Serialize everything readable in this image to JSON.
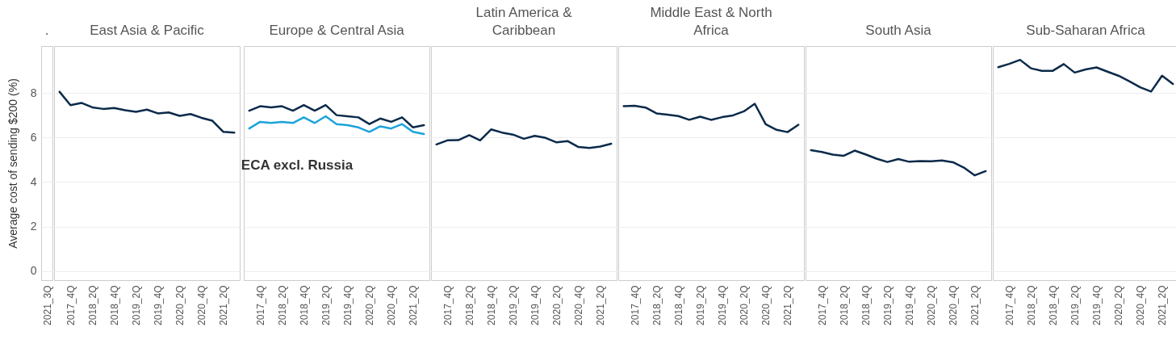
{
  "chart_data": [
    {
      "type": "line",
      "title": ".",
      "ylabel": "Average cost of sending $200 (%)",
      "categories": [
        "2021_3Q"
      ],
      "series": [
        {
          "color": "#0b2a4a",
          "values": [
            null
          ]
        }
      ],
      "ylim": [
        -0.4,
        10.1
      ],
      "yticks": [
        0,
        2,
        4,
        6,
        8
      ],
      "grid": "y",
      "marker": "none",
      "line_style": "solid"
    },
    {
      "type": "line",
      "title": "East Asia & Pacific",
      "categories": [
        null,
        "2017_4Q",
        null,
        "2018_2Q",
        null,
        "2018_4Q",
        null,
        "2019_2Q",
        null,
        "2019_4Q",
        null,
        "2020_2Q",
        null,
        "2020_4Q",
        null,
        "2021_2Q",
        null
      ],
      "series": [
        {
          "color": "#0b2a4a",
          "values": [
            8.05,
            7.45,
            7.55,
            7.35,
            7.28,
            7.32,
            7.22,
            7.15,
            7.25,
            7.08,
            7.12,
            6.97,
            7.05,
            6.88,
            6.75,
            6.25,
            6.22
          ]
        }
      ],
      "ylim": [
        -0.4,
        10.1
      ],
      "yticks": [
        0,
        2,
        4,
        6,
        8
      ],
      "tick_labels": "x",
      "grid": "y",
      "marker": "none",
      "line_style": "solid"
    },
    {
      "type": "line",
      "title": "Europe & Central Asia",
      "categories": [
        null,
        "2017_4Q",
        null,
        "2018_2Q",
        null,
        "2018_4Q",
        null,
        "2019_2Q",
        null,
        "2019_4Q",
        null,
        "2020_2Q",
        null,
        "2020_4Q",
        null,
        "2021_2Q",
        null
      ],
      "series": [
        {
          "color": "#0b2a4a",
          "values": [
            7.2,
            7.4,
            7.35,
            7.4,
            7.2,
            7.45,
            7.2,
            7.45,
            7.0,
            6.95,
            6.9,
            6.6,
            6.85,
            6.7,
            6.9,
            6.45,
            6.55
          ]
        },
        {
          "name": "ECA excl. Russia",
          "color": "#1ca3dc",
          "values": [
            6.4,
            6.7,
            6.65,
            6.7,
            6.65,
            6.9,
            6.65,
            6.95,
            6.6,
            6.55,
            6.45,
            6.25,
            6.5,
            6.4,
            6.6,
            6.25,
            6.15
          ]
        }
      ],
      "ylim": [
        -0.4,
        10.1
      ],
      "yticks": [
        0,
        2,
        4,
        6,
        8
      ],
      "tick_labels": "x",
      "grid": "y",
      "marker": "none",
      "line_style": "solid"
    },
    {
      "type": "line",
      "title": "Latin America &\nCaribbean",
      "categories": [
        null,
        "2017_4Q",
        null,
        "2018_2Q",
        null,
        "2018_4Q",
        null,
        "2019_2Q",
        null,
        "2019_4Q",
        null,
        "2020_2Q",
        null,
        "2020_4Q",
        null,
        "2021_2Q",
        null
      ],
      "series": [
        {
          "color": "#0b2a4a",
          "values": [
            5.69,
            5.87,
            5.88,
            6.1,
            5.87,
            6.36,
            6.22,
            6.13,
            5.94,
            6.07,
            5.98,
            5.78,
            5.84,
            5.57,
            5.53,
            5.59,
            5.72
          ]
        }
      ],
      "ylim": [
        -0.4,
        10.1
      ],
      "yticks": [
        0,
        2,
        4,
        6,
        8
      ],
      "tick_labels": "x",
      "grid": "y",
      "marker": "none",
      "line_style": "solid"
    },
    {
      "type": "line",
      "title": "Middle East & North\nAfrica",
      "categories": [
        null,
        "2017_4Q",
        null,
        "2018_2Q",
        null,
        "2018_4Q",
        null,
        "2019_2Q",
        null,
        "2019_4Q",
        null,
        "2020_2Q",
        null,
        "2020_4Q",
        null,
        "2021_2Q",
        null
      ],
      "series": [
        {
          "color": "#0b2a4a",
          "values": [
            7.4,
            7.42,
            7.34,
            7.08,
            7.02,
            6.96,
            6.79,
            6.93,
            6.79,
            6.91,
            6.99,
            7.17,
            7.51,
            6.59,
            6.34,
            6.24,
            6.57
          ]
        }
      ],
      "ylim": [
        -0.4,
        10.1
      ],
      "yticks": [
        0,
        2,
        4,
        6,
        8
      ],
      "tick_labels": "x",
      "grid": "y",
      "marker": "none",
      "line_style": "solid"
    },
    {
      "type": "line",
      "title": "South Asia",
      "categories": [
        null,
        "2017_4Q",
        null,
        "2018_2Q",
        null,
        "2018_4Q",
        null,
        "2019_2Q",
        null,
        "2019_4Q",
        null,
        "2020_2Q",
        null,
        "2020_4Q",
        null,
        "2021_2Q",
        null
      ],
      "series": [
        {
          "color": "#0b2a4a",
          "values": [
            5.43,
            5.35,
            5.23,
            5.18,
            5.41,
            5.24,
            5.05,
            4.9,
            5.03,
            4.91,
            4.94,
            4.93,
            4.97,
            4.89,
            4.65,
            4.3,
            4.49
          ]
        }
      ],
      "ylim": [
        -0.4,
        10.1
      ],
      "yticks": [
        0,
        2,
        4,
        6,
        8
      ],
      "tick_labels": "x",
      "grid": "y",
      "marker": "none",
      "line_style": "solid"
    },
    {
      "type": "line",
      "title": "Sub-Saharan Africa",
      "categories": [
        null,
        "2017_4Q",
        null,
        "2018_2Q",
        null,
        "2018_4Q",
        null,
        "2019_2Q",
        null,
        "2019_4Q",
        null,
        "2020_2Q",
        null,
        "2020_4Q",
        null,
        "2021_2Q",
        null
      ],
      "series": [
        {
          "color": "#0b2a4a",
          "values": [
            9.15,
            9.3,
            9.48,
            9.1,
            8.99,
            8.99,
            9.29,
            8.91,
            9.05,
            9.14,
            8.95,
            8.77,
            8.52,
            8.25,
            8.06,
            8.77,
            8.4
          ]
        }
      ],
      "ylim": [
        -0.4,
        10.1
      ],
      "yticks": [
        0,
        2,
        4,
        6,
        8
      ],
      "tick_labels": "x",
      "grid": "y",
      "marker": "none",
      "line_style": "solid"
    }
  ]
}
